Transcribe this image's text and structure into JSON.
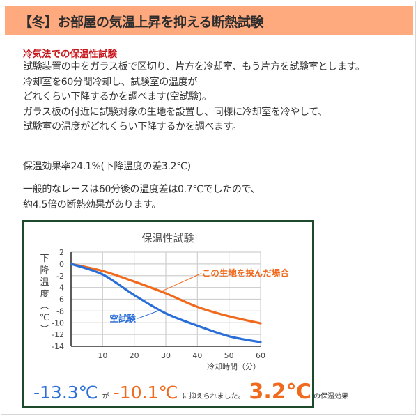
{
  "header": {
    "title": "【冬】お部屋の気温上昇を抑える断熱試験"
  },
  "section": {
    "heading": "冷気法での保温性試験",
    "description_lines": [
      "試験装置の中をガラス板で区切り、片方を冷却室、もう片方を試験室とします。",
      "冷却室を60分間冷却し、試験室の温度が",
      "どれくらい下降するかを調べます(空試験)。",
      "ガラス板の付近に試験対象の生地を設置し、同様に冷却室を冷やして、",
      "試験室の温度がどれくらい下降するかを調べます。"
    ],
    "result_line": "保温効果率24.1%(下降温度の差3.2℃)",
    "comparison_lines": [
      "一般的なレースは60分後の温度差は0.7℃でしたので、",
      "約4.5倍の断熱効果があります。"
    ]
  },
  "summary": {
    "blank_value": "-13.3℃",
    "particle_ga": "が",
    "fabric_value": "-10.1℃",
    "suppressed_text": "に抑えられました。",
    "effect_value": "3.2℃",
    "effect_label": "の保温効果"
  },
  "colors": {
    "banner": "#ffa97f",
    "heading_red": "#c8161d",
    "blank_series": "#2a6ed8",
    "fabric_series": "#f06a1e",
    "chart_border": "#1e4a2c"
  },
  "chart_data": {
    "type": "line",
    "title": "保温性試験",
    "xlabel": "冷却時間（分）",
    "ylabel": "下降温度（℃）",
    "x": [
      0,
      10,
      20,
      30,
      40,
      50,
      60
    ],
    "x_ticks": [
      10,
      20,
      30,
      40,
      50,
      60
    ],
    "y_ticks": [
      2,
      0,
      -2,
      -4,
      -6,
      -8,
      -10,
      -12,
      -14
    ],
    "xlim": [
      0,
      60
    ],
    "ylim": [
      -14,
      2
    ],
    "grid": true,
    "series": [
      {
        "name": "この生地を挟んだ場合",
        "color": "#f06a1e",
        "values": [
          0,
          -1.2,
          -3.0,
          -5.0,
          -7.3,
          -8.9,
          -10.1
        ]
      },
      {
        "name": "空試験",
        "color": "#2a6ed8",
        "values": [
          0,
          -1.8,
          -5.3,
          -8.4,
          -10.5,
          -12.3,
          -13.3
        ]
      }
    ],
    "annotations": [
      {
        "text": "この生地を挟んだ場合",
        "series": 0
      },
      {
        "text": "空試験",
        "series": 1
      }
    ]
  }
}
